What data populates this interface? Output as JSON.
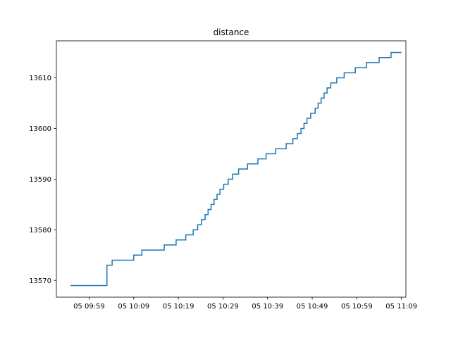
{
  "chart_data": {
    "type": "line",
    "title": "distance",
    "xlabel": "",
    "ylabel": "",
    "x_ticks": [
      "05 09:59",
      "05 10:09",
      "05 10:19",
      "05 10:29",
      "05 10:39",
      "05 10:49",
      "05 10:59",
      "05 11:09"
    ],
    "y_ticks": [
      13570,
      13580,
      13590,
      13600,
      13610
    ],
    "xlim": [
      "09:51:40",
      "11:10:00"
    ],
    "ylim": [
      13566.7,
      13617.3
    ],
    "grid": false,
    "line_color": "#1f77b4",
    "series": [
      {
        "drawstyle": "steps-post",
        "x": [
          "09:54:50",
          "10:03:00",
          "10:04:10",
          "10:05:20",
          "10:09:00",
          "10:10:50",
          "10:15:50",
          "10:18:30",
          "10:20:40",
          "10:22:20",
          "10:23:20",
          "10:24:10",
          "10:25:00",
          "10:25:40",
          "10:26:20",
          "10:27:00",
          "10:27:40",
          "10:28:20",
          "10:29:10",
          "10:30:10",
          "10:31:10",
          "10:32:30",
          "10:34:30",
          "10:36:50",
          "10:38:40",
          "10:40:50",
          "10:43:10",
          "10:44:40",
          "10:45:40",
          "10:46:30",
          "10:47:10",
          "10:47:50",
          "10:48:40",
          "10:49:40",
          "10:50:20",
          "10:51:00",
          "10:51:40",
          "10:52:20",
          "10:53:10",
          "10:54:30",
          "10:56:10",
          "10:58:40",
          "11:01:10",
          "11:04:00",
          "11:06:40",
          "11:09:00"
        ],
        "y": [
          13569,
          13573,
          13574,
          13574,
          13575,
          13576,
          13577,
          13578,
          13579,
          13580,
          13581,
          13582,
          13583,
          13584,
          13585,
          13586,
          13587,
          13588,
          13589,
          13590,
          13591,
          13592,
          13593,
          13594,
          13595,
          13596,
          13597,
          13598,
          13599,
          13600,
          13601,
          13602,
          13603,
          13604,
          13605,
          13606,
          13607,
          13608,
          13609,
          13610,
          13611,
          13612,
          13613,
          13614,
          13615,
          13615
        ]
      }
    ]
  }
}
